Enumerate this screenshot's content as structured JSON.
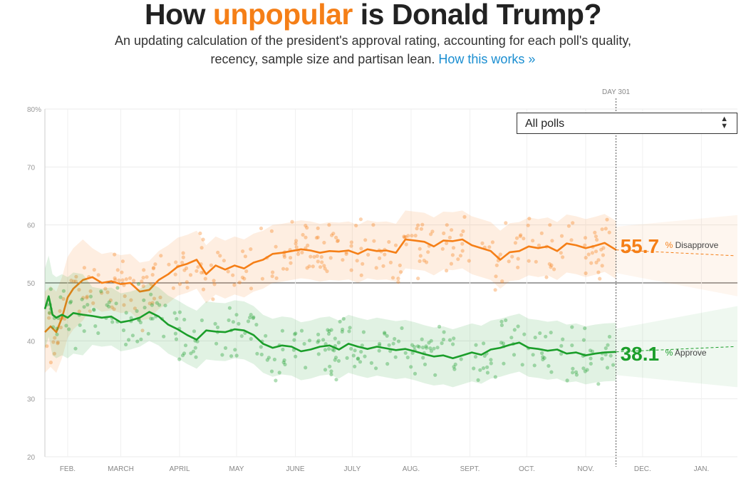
{
  "header": {
    "title_pre": "How ",
    "title_highlight": "unpopular",
    "title_post": " is Donald Trump?",
    "subtitle_line1": "An updating calculation of the president's approval rating, accounting for each poll's quality,",
    "subtitle_line2": "recency, sample size and partisan lean.",
    "link_label": "How this works »"
  },
  "filter": {
    "selected": "All polls",
    "icon": "updown-arrows-icon"
  },
  "colors": {
    "approve": "#1b9e2a",
    "disapprove": "#f57f17",
    "title_highlight": "#f57f17",
    "link": "#1a8ed1"
  },
  "chart_data": {
    "type": "line",
    "ylim": [
      20,
      80
    ],
    "yticks": [
      "80%",
      "70",
      "60",
      "50",
      "40",
      "30",
      "20"
    ],
    "y_tick_values": [
      80,
      70,
      60,
      50,
      40,
      30,
      20
    ],
    "reference_line": 50,
    "x_months": [
      "FEB.",
      "MARCH",
      "APRIL",
      "MAY",
      "JUNE",
      "JULY",
      "AUG.",
      "SEPT.",
      "OCT.",
      "NOV.",
      "DEC.",
      "JAN."
    ],
    "x_month_start_days": [
      12,
      40,
      71,
      101,
      132,
      162,
      193,
      224,
      254,
      285,
      315,
      346
    ],
    "xlim": [
      0,
      365
    ],
    "current_day": 301,
    "current_day_label": "DAY 301",
    "series": [
      {
        "name": "Disapprove",
        "end_value": "55.7",
        "unit": "%",
        "label": "Disapprove",
        "days": [
          0,
          3,
          6,
          9,
          12,
          15,
          20,
          25,
          30,
          35,
          40,
          45,
          50,
          55,
          60,
          65,
          70,
          75,
          80,
          85,
          90,
          95,
          100,
          105,
          110,
          115,
          120,
          125,
          130,
          135,
          140,
          145,
          150,
          155,
          160,
          165,
          170,
          175,
          180,
          185,
          190,
          195,
          200,
          205,
          210,
          215,
          220,
          225,
          230,
          235,
          240,
          245,
          250,
          255,
          260,
          265,
          270,
          275,
          280,
          285,
          290,
          295,
          301
        ],
        "values": [
          41.5,
          42.5,
          41.5,
          44.0,
          47.5,
          49.0,
          50.5,
          51.0,
          50.0,
          50.3,
          49.8,
          50.0,
          48.5,
          48.8,
          50.5,
          51.5,
          52.8,
          53.3,
          54.0,
          51.5,
          53.0,
          52.3,
          53.0,
          52.5,
          53.5,
          54.0,
          55.0,
          55.2,
          55.5,
          55.8,
          55.6,
          55.2,
          55.5,
          55.4,
          55.6,
          55.0,
          55.8,
          55.5,
          55.6,
          55.2,
          57.5,
          57.3,
          57.1,
          56.3,
          57.3,
          57.2,
          57.5,
          56.5,
          56.0,
          55.5,
          54.0,
          55.3,
          55.5,
          56.3,
          56.0,
          56.3,
          55.5,
          56.8,
          56.5,
          56.0,
          56.4,
          56.9,
          55.7
        ],
        "projection_end": 54.7
      },
      {
        "name": "Approve",
        "end_value": "38.1",
        "unit": "%",
        "label": "Approve",
        "days": [
          0,
          2,
          4,
          6,
          9,
          12,
          15,
          20,
          25,
          30,
          35,
          40,
          45,
          50,
          55,
          60,
          65,
          70,
          75,
          80,
          85,
          90,
          95,
          100,
          105,
          110,
          115,
          120,
          125,
          130,
          135,
          140,
          145,
          150,
          155,
          160,
          165,
          170,
          175,
          180,
          185,
          190,
          195,
          200,
          205,
          210,
          215,
          220,
          225,
          230,
          235,
          240,
          245,
          250,
          255,
          260,
          265,
          270,
          275,
          280,
          285,
          290,
          295,
          301
        ],
        "values": [
          45.5,
          47.7,
          44.5,
          44.0,
          44.5,
          44.0,
          44.8,
          44.5,
          44.3,
          44.0,
          44.2,
          43.2,
          43.5,
          44.0,
          45.0,
          44.2,
          42.8,
          42.0,
          41.0,
          40.2,
          41.8,
          41.6,
          41.5,
          42.0,
          41.8,
          41.0,
          39.5,
          38.8,
          39.2,
          39.0,
          38.2,
          38.5,
          39.0,
          39.2,
          38.5,
          39.5,
          39.0,
          38.6,
          39.0,
          38.7,
          38.4,
          38.6,
          38.2,
          37.7,
          37.3,
          37.5,
          37.0,
          37.5,
          38.0,
          37.6,
          38.5,
          38.8,
          39.3,
          39.7,
          38.8,
          38.6,
          38.3,
          38.5,
          37.8,
          38.0,
          37.5,
          37.8,
          38.0,
          38.1
        ],
        "projection_end": 39.0
      }
    ]
  }
}
